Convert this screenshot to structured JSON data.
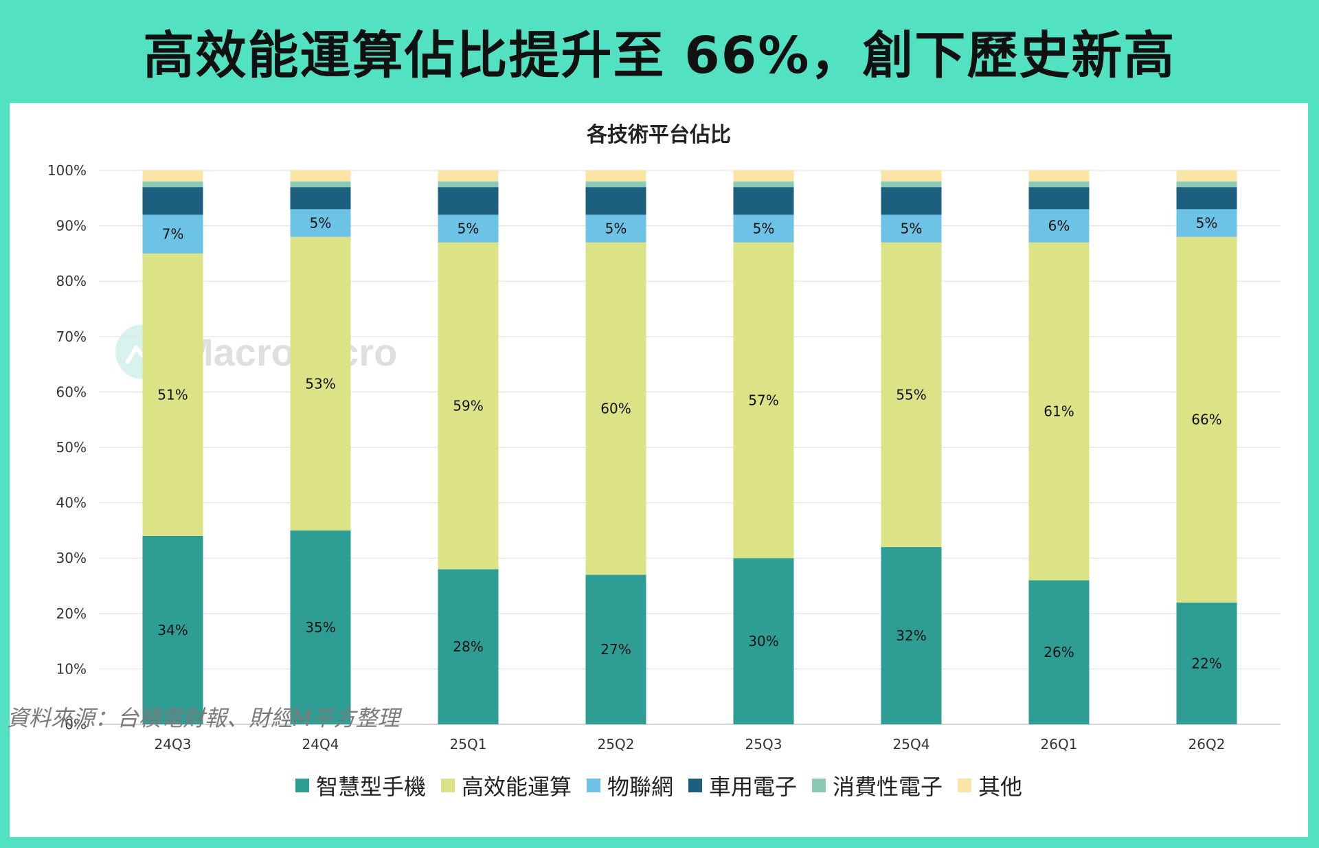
{
  "headline": "高效能運算佔比提升至 66%，創下歷史新高",
  "source": "資料來源：台積電財報、財經M平方整理",
  "watermark": "MacroMicro",
  "chart_data": {
    "type": "bar",
    "stacked": true,
    "title": "各技術平台佔比",
    "categories": [
      "24Q3",
      "24Q4",
      "25Q1",
      "25Q2",
      "25Q3",
      "25Q4",
      "26Q1",
      "26Q2"
    ],
    "ylim": [
      0,
      100
    ],
    "yticks": [
      "0%",
      "10%",
      "20%",
      "30%",
      "40%",
      "50%",
      "60%",
      "70%",
      "80%",
      "90%",
      "100%"
    ],
    "grid": true,
    "legend_position": "bottom",
    "series": [
      {
        "name": "智慧型手機",
        "color": "#2e9e94",
        "values": [
          34,
          35,
          28,
          27,
          30,
          32,
          26,
          22
        ],
        "labels": [
          "34%",
          "35%",
          "28%",
          "27%",
          "30%",
          "32%",
          "26%",
          "22%"
        ]
      },
      {
        "name": "高效能運算",
        "color": "#dbe386",
        "values": [
          51,
          53,
          59,
          60,
          57,
          55,
          61,
          66
        ],
        "labels": [
          "51%",
          "53%",
          "59%",
          "60%",
          "57%",
          "55%",
          "61%",
          "66%"
        ]
      },
      {
        "name": "物聯網",
        "color": "#6cc3e6",
        "values": [
          7,
          5,
          5,
          5,
          5,
          5,
          6,
          5
        ],
        "labels": [
          "7%",
          "5%",
          "5%",
          "5%",
          "5%",
          "5%",
          "6%",
          "5%"
        ]
      },
      {
        "name": "車用電子",
        "color": "#1c5f7e",
        "values": [
          5,
          4,
          5,
          5,
          5,
          5,
          4,
          4
        ],
        "labels": []
      },
      {
        "name": "消費性電子",
        "color": "#8cc9b5",
        "values": [
          1,
          1,
          1,
          1,
          1,
          1,
          1,
          1
        ],
        "labels": []
      },
      {
        "name": "其他",
        "color": "#fbe5a6",
        "values": [
          2,
          2,
          2,
          2,
          2,
          2,
          2,
          2
        ],
        "labels": []
      }
    ]
  }
}
